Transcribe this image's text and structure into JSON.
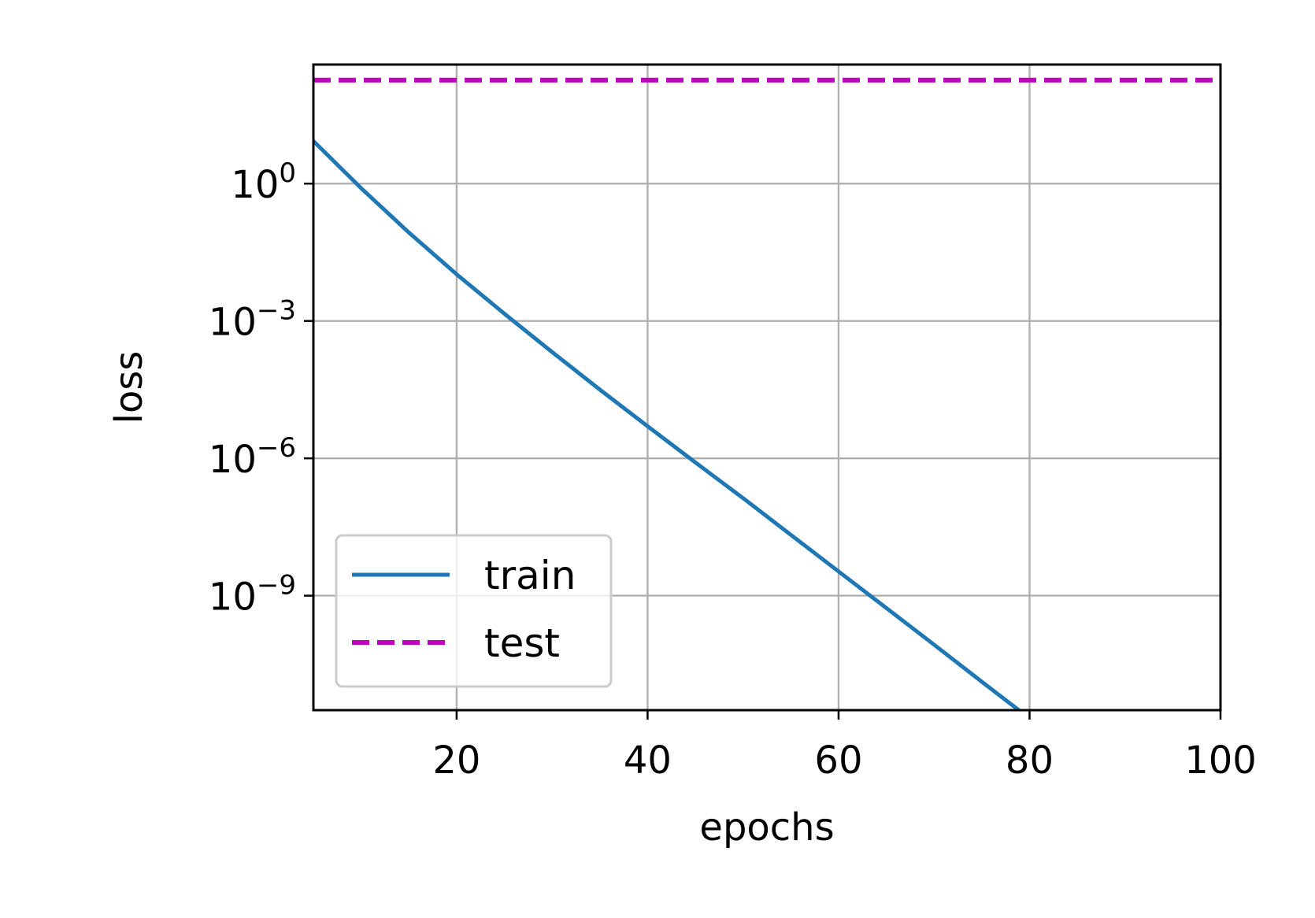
{
  "chart_data": {
    "type": "line",
    "xlabel": "epochs",
    "ylabel": "loss",
    "xlim": [
      5,
      100
    ],
    "ylim_log10": [
      -11.5,
      2.6
    ],
    "yscale": "log",
    "grid": true,
    "legend_position": "lower-left",
    "x_ticks": [
      20,
      40,
      60,
      80,
      100
    ],
    "y_ticks": [
      {
        "base": "10",
        "exp": "0",
        "log10": 0
      },
      {
        "base": "10",
        "exp": "−3",
        "log10": -3
      },
      {
        "base": "10",
        "exp": "−6",
        "log10": -6
      },
      {
        "base": "10",
        "exp": "−9",
        "log10": -9
      }
    ],
    "series": [
      {
        "name": "train",
        "color": "#1f77b4",
        "style": "solid",
        "x": [
          5,
          10,
          15,
          20,
          25,
          30,
          35,
          40,
          45,
          50,
          55,
          60,
          65,
          70,
          75,
          80,
          85,
          90,
          95,
          100
        ],
        "log10_y": [
          0.93,
          -0.1,
          -1.07,
          -1.98,
          -2.84,
          -3.68,
          -4.5,
          -5.3,
          -6.09,
          -6.87,
          -7.67,
          -8.47,
          -9.27,
          -10.07,
          -10.88,
          -11.68,
          -12.17,
          -12.49,
          -12.73,
          -12.85
        ]
      },
      {
        "name": "test",
        "color": "#bf00bf",
        "style": "dashed",
        "x": [
          5,
          100
        ],
        "log10_y": [
          2.26,
          2.26
        ]
      }
    ]
  }
}
